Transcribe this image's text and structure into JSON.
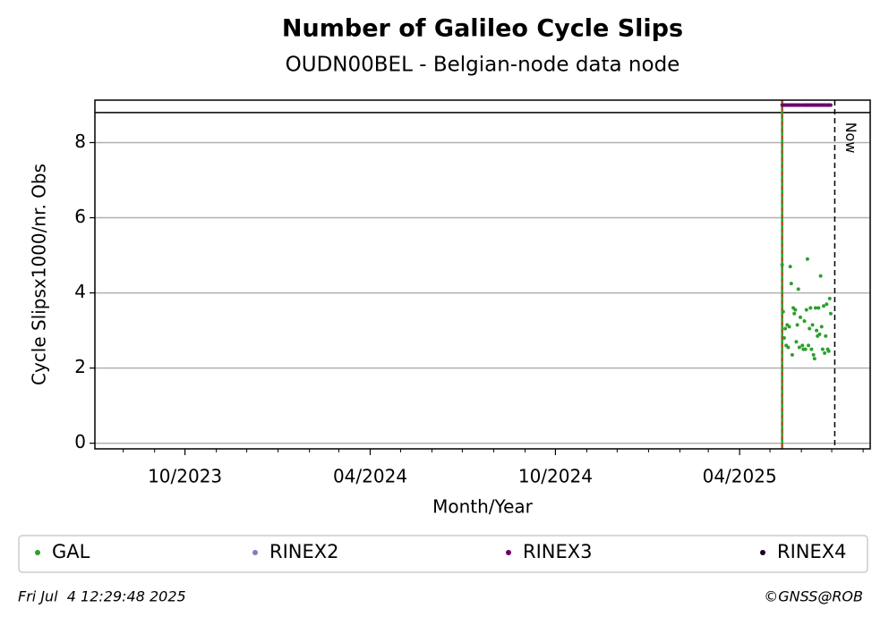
{
  "chart_data": {
    "type": "scatter",
    "title": "Number of Galileo Cycle Slips",
    "subtitle": "OUDN00BEL - Belgian-node data node",
    "xlabel": "Month/Year",
    "ylabel": "Cycle Slipsx1000/nr. Obs",
    "xlim": [
      "2023-07-04",
      "2025-08-08"
    ],
    "xticks": [
      {
        "value": "2023-10-01",
        "label": "10/2023"
      },
      {
        "value": "2024-04-01",
        "label": "04/2024"
      },
      {
        "value": "2024-10-01",
        "label": "10/2024"
      },
      {
        "value": "2025-04-01",
        "label": "04/2025"
      }
    ],
    "xminorticks": [
      "2023-08-01",
      "2023-09-01",
      "2023-11-01",
      "2023-12-01",
      "2024-01-01",
      "2024-02-01",
      "2024-03-01",
      "2024-05-01",
      "2024-06-01",
      "2024-07-01",
      "2024-08-01",
      "2024-09-01",
      "2024-11-01",
      "2024-12-01",
      "2025-01-01",
      "2025-02-01",
      "2025-03-01",
      "2025-05-01",
      "2025-06-01",
      "2025-07-01",
      "2025-08-01"
    ],
    "ylim": [
      -0.15,
      9.13
    ],
    "yticks": [
      0,
      2,
      4,
      6,
      8
    ],
    "grid": true,
    "hline": 8.8,
    "start_date": "2025-05-13",
    "now": {
      "date": "2025-07-04",
      "label": "Now"
    },
    "x": [
      "2025-05-13",
      "2025-05-14",
      "2025-05-15",
      "2025-05-16",
      "2025-05-17",
      "2025-05-18",
      "2025-05-19",
      "2025-05-20",
      "2025-05-21",
      "2025-05-22",
      "2025-05-23",
      "2025-05-24",
      "2025-05-25",
      "2025-05-26",
      "2025-05-27",
      "2025-05-28",
      "2025-05-29",
      "2025-05-30",
      "2025-05-31",
      "2025-06-02",
      "2025-06-03",
      "2025-06-04",
      "2025-06-05",
      "2025-06-06",
      "2025-06-07",
      "2025-06-08",
      "2025-06-09",
      "2025-06-10",
      "2025-06-11",
      "2025-06-12",
      "2025-06-13",
      "2025-06-14",
      "2025-06-15",
      "2025-06-16",
      "2025-06-17",
      "2025-06-18",
      "2025-06-19",
      "2025-06-20",
      "2025-06-21",
      "2025-06-22",
      "2025-06-23",
      "2025-06-24",
      "2025-06-25",
      "2025-06-26",
      "2025-06-27",
      "2025-06-28",
      "2025-06-29",
      "2025-06-30"
    ],
    "series": [
      {
        "name": "GAL",
        "color": "#2ca02c",
        "values": [
          4.75,
          3.5,
          2.8,
          3.05,
          2.6,
          3.15,
          2.55,
          3.1,
          4.7,
          4.25,
          2.35,
          3.6,
          3.45,
          3.55,
          2.7,
          3.15,
          4.1,
          2.55,
          3.35,
          2.6,
          2.5,
          3.25,
          2.5,
          3.55,
          4.9,
          2.6,
          3.05,
          3.6,
          2.5,
          3.15,
          2.35,
          2.25,
          3.6,
          3.0,
          2.85,
          3.6,
          2.9,
          4.45,
          3.1,
          2.5,
          3.65,
          2.4,
          2.85,
          3.7,
          2.5,
          2.45,
          3.85,
          3.45
        ]
      },
      {
        "name": "RINEX2",
        "color": "#7f7fbf",
        "values": [
          null,
          null,
          null,
          null,
          null,
          null,
          null,
          null,
          null,
          null,
          null,
          null,
          null,
          null,
          null,
          null,
          null,
          null,
          null,
          null,
          null,
          null,
          null,
          null,
          null,
          null,
          null,
          null,
          null,
          null,
          null,
          null,
          null,
          null,
          null,
          null,
          null,
          null,
          null,
          null,
          null,
          null,
          null,
          null,
          null,
          null,
          null,
          null
        ]
      },
      {
        "name": "RINEX3",
        "color": "#6b006b",
        "values": [
          9,
          9,
          9,
          9,
          9,
          9,
          9,
          9,
          9,
          9,
          9,
          9,
          9,
          9,
          9,
          9,
          9,
          9,
          9,
          9,
          9,
          9,
          9,
          9,
          9,
          9,
          9,
          9,
          9,
          9,
          9,
          9,
          9,
          9,
          9,
          9,
          9,
          9,
          9,
          9,
          9,
          9,
          9,
          9,
          9,
          9,
          9,
          9
        ]
      },
      {
        "name": "RINEX4",
        "color": "#1a0024",
        "values": [
          null,
          null,
          null,
          null,
          null,
          null,
          null,
          null,
          null,
          null,
          null,
          null,
          null,
          null,
          null,
          null,
          null,
          null,
          null,
          null,
          null,
          null,
          null,
          null,
          null,
          null,
          null,
          null,
          null,
          null,
          null,
          null,
          null,
          null,
          null,
          null,
          null,
          null,
          null,
          null,
          null,
          null,
          null,
          null,
          null,
          null,
          null,
          null
        ]
      }
    ]
  },
  "footer": {
    "timestamp": "Fri Jul  4 12:29:48 2025",
    "credit": "©GNSS@ROB"
  }
}
